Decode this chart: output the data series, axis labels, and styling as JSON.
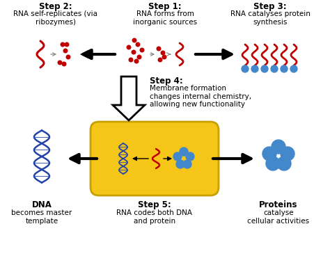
{
  "bg_color": "#ffffff",
  "step1_title": "Step 1:",
  "step1_text": "RNA forms from\ninorganic sources",
  "step2_title": "Step 2:",
  "step2_text": "RNA self-replicates (via\nribozymes)",
  "step3_title": "Step 3:",
  "step3_text": "RNA catalyses protein\nsynthesis",
  "step4_title": "Step 4:",
  "step4_text": "Membrane formation\nchanges internal chemistry,\nallowing new functionality",
  "step5_title": "Step 5:",
  "step5_text": "RNA codes both DNA\nand protein",
  "dna_label_bold": "DNA",
  "dna_label_rest": "becomes master\ntemplate",
  "protein_label_bold": "Proteins",
  "protein_label_rest": "catalyse\ncellular activities",
  "rna_color": "#c00000",
  "dna_color": "#2244aa",
  "protein_color": "#4488cc",
  "cell_fill": "#f5c518",
  "cell_edge": "#c8a000",
  "arrow_fill": "#111111",
  "title_fontsize": 8.5,
  "body_fontsize": 7.5
}
